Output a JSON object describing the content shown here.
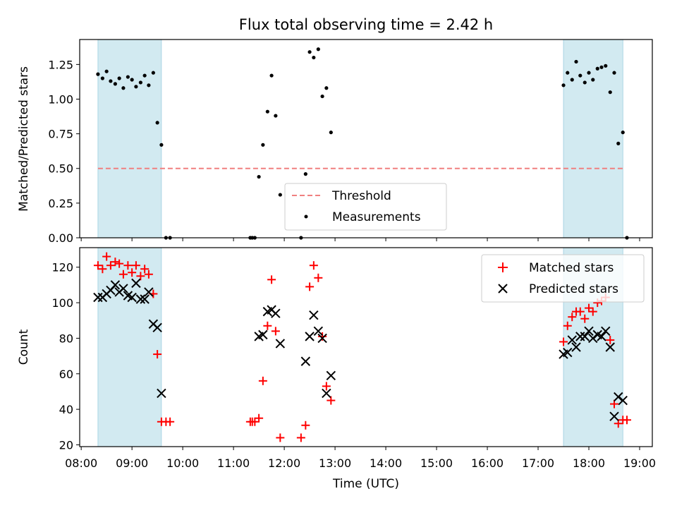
{
  "chart_data": [
    {
      "type": "scatter",
      "title": "Flux total observing time = 2.42 h",
      "xlabel": "",
      "ylabel": "Matched/Predicted stars",
      "xlim_hours": [
        7.97,
        19.25
      ],
      "ylim": [
        0,
        1.43
      ],
      "y_ticks": [
        "0.00",
        "0.25",
        "0.50",
        "0.75",
        "1.00",
        "1.25"
      ],
      "x_ticks": [
        "08:00",
        "09:00",
        "10:00",
        "11:00",
        "12:00",
        "13:00",
        "14:00",
        "15:00",
        "16:00",
        "17:00",
        "18:00",
        "19:00"
      ],
      "shaded_spans_hours": [
        [
          8.33,
          9.58
        ],
        [
          17.5,
          18.67
        ]
      ],
      "shade_color": "#add8e6",
      "threshold": 0.5,
      "threshold_span_hours": [
        8.33,
        18.67
      ],
      "threshold_color": "#f08080",
      "legend": {
        "placement": "lower-center",
        "entries": [
          "Threshold",
          "Measurements"
        ]
      },
      "series": [
        {
          "name": "Measurements",
          "color": "#000000",
          "points": [
            [
              8.33,
              1.18
            ],
            [
              8.42,
              1.15
            ],
            [
              8.5,
              1.2
            ],
            [
              8.58,
              1.13
            ],
            [
              8.67,
              1.11
            ],
            [
              8.75,
              1.15
            ],
            [
              8.83,
              1.08
            ],
            [
              8.92,
              1.16
            ],
            [
              9.0,
              1.14
            ],
            [
              9.08,
              1.09
            ],
            [
              9.17,
              1.12
            ],
            [
              9.25,
              1.17
            ],
            [
              9.33,
              1.1
            ],
            [
              9.42,
              1.19
            ],
            [
              9.5,
              0.83
            ],
            [
              9.58,
              0.67
            ],
            [
              9.67,
              0.0
            ],
            [
              9.75,
              0.0
            ],
            [
              11.33,
              0.0
            ],
            [
              11.37,
              0.0
            ],
            [
              11.42,
              0.0
            ],
            [
              11.5,
              0.44
            ],
            [
              11.58,
              0.67
            ],
            [
              11.67,
              0.91
            ],
            [
              11.75,
              1.17
            ],
            [
              11.83,
              0.88
            ],
            [
              11.92,
              0.31
            ],
            [
              12.33,
              0.0
            ],
            [
              12.42,
              0.46
            ],
            [
              12.5,
              1.34
            ],
            [
              12.58,
              1.3
            ],
            [
              12.67,
              1.36
            ],
            [
              12.75,
              1.02
            ],
            [
              12.83,
              1.08
            ],
            [
              12.92,
              0.76
            ],
            [
              17.5,
              1.1
            ],
            [
              17.58,
              1.19
            ],
            [
              17.67,
              1.14
            ],
            [
              17.75,
              1.27
            ],
            [
              17.83,
              1.17
            ],
            [
              17.92,
              1.12
            ],
            [
              18.0,
              1.19
            ],
            [
              18.08,
              1.14
            ],
            [
              18.17,
              1.22
            ],
            [
              18.25,
              1.23
            ],
            [
              18.33,
              1.24
            ],
            [
              18.42,
              1.05
            ],
            [
              18.5,
              1.19
            ],
            [
              18.58,
              0.68
            ],
            [
              18.67,
              0.76
            ],
            [
              18.75,
              0.0
            ]
          ]
        }
      ]
    },
    {
      "type": "scatter",
      "title": "",
      "xlabel": "Time (UTC)",
      "ylabel": "Count",
      "xlim_hours": [
        7.97,
        19.25
      ],
      "ylim": [
        19,
        131
      ],
      "y_ticks": [
        "20",
        "40",
        "60",
        "80",
        "100",
        "120"
      ],
      "x_ticks": [
        "08:00",
        "09:00",
        "10:00",
        "11:00",
        "12:00",
        "13:00",
        "14:00",
        "15:00",
        "16:00",
        "17:00",
        "18:00",
        "19:00"
      ],
      "shaded_spans_hours": [
        [
          8.33,
          9.58
        ],
        [
          17.5,
          18.67
        ]
      ],
      "shade_color": "#add8e6",
      "legend": {
        "placement": "upper-right",
        "entries": [
          "Matched stars",
          "Predicted stars"
        ]
      },
      "series": [
        {
          "name": "Matched stars",
          "marker": "plus",
          "color": "#ff0000",
          "points": [
            [
              8.33,
              121
            ],
            [
              8.42,
              119
            ],
            [
              8.5,
              126
            ],
            [
              8.58,
              121
            ],
            [
              8.67,
              123
            ],
            [
              8.75,
              122
            ],
            [
              8.83,
              116
            ],
            [
              8.92,
              121
            ],
            [
              9.0,
              117
            ],
            [
              9.08,
              121
            ],
            [
              9.17,
              115
            ],
            [
              9.25,
              119
            ],
            [
              9.33,
              116
            ],
            [
              9.42,
              105
            ],
            [
              9.5,
              71
            ],
            [
              9.58,
              33
            ],
            [
              9.67,
              33
            ],
            [
              9.75,
              33
            ],
            [
              11.33,
              33
            ],
            [
              11.37,
              33
            ],
            [
              11.42,
              33
            ],
            [
              11.5,
              35
            ],
            [
              11.58,
              56
            ],
            [
              11.67,
              87
            ],
            [
              11.75,
              113
            ],
            [
              11.83,
              84
            ],
            [
              11.92,
              24
            ],
            [
              12.33,
              24
            ],
            [
              12.42,
              31
            ],
            [
              12.5,
              109
            ],
            [
              12.58,
              121
            ],
            [
              12.67,
              114
            ],
            [
              12.75,
              81
            ],
            [
              12.83,
              53
            ],
            [
              12.92,
              45
            ],
            [
              17.5,
              78
            ],
            [
              17.58,
              87
            ],
            [
              17.67,
              92
            ],
            [
              17.75,
              95
            ],
            [
              17.83,
              95
            ],
            [
              17.92,
              91
            ],
            [
              18.0,
              97
            ],
            [
              18.08,
              95
            ],
            [
              18.17,
              100
            ],
            [
              18.25,
              101
            ],
            [
              18.33,
              103
            ],
            [
              18.42,
              79
            ],
            [
              18.5,
              43
            ],
            [
              18.58,
              32
            ],
            [
              18.67,
              34
            ],
            [
              18.75,
              34
            ]
          ]
        },
        {
          "name": "Predicted stars",
          "marker": "x",
          "color": "#000000",
          "points": [
            [
              8.33,
              103
            ],
            [
              8.42,
              103
            ],
            [
              8.5,
              105
            ],
            [
              8.58,
              107
            ],
            [
              8.67,
              110
            ],
            [
              8.75,
              106
            ],
            [
              8.83,
              108
            ],
            [
              8.92,
              104
            ],
            [
              9.0,
              103
            ],
            [
              9.08,
              111
            ],
            [
              9.17,
              102
            ],
            [
              9.25,
              102
            ],
            [
              9.33,
              106
            ],
            [
              9.42,
              88
            ],
            [
              9.5,
              86
            ],
            [
              9.58,
              49
            ],
            [
              11.5,
              81
            ],
            [
              11.58,
              82
            ],
            [
              11.67,
              95
            ],
            [
              11.75,
              96
            ],
            [
              11.83,
              94
            ],
            [
              11.92,
              77
            ],
            [
              12.42,
              67
            ],
            [
              12.5,
              81
            ],
            [
              12.58,
              93
            ],
            [
              12.67,
              84
            ],
            [
              12.75,
              80
            ],
            [
              12.83,
              49
            ],
            [
              12.92,
              59
            ],
            [
              17.5,
              71
            ],
            [
              17.58,
              72
            ],
            [
              17.67,
              79
            ],
            [
              17.75,
              75
            ],
            [
              17.83,
              81
            ],
            [
              17.92,
              81
            ],
            [
              18.0,
              84
            ],
            [
              18.08,
              80
            ],
            [
              18.17,
              82
            ],
            [
              18.25,
              81
            ],
            [
              18.33,
              84
            ],
            [
              18.42,
              75
            ],
            [
              18.5,
              36
            ],
            [
              18.58,
              47
            ],
            [
              18.67,
              45
            ]
          ]
        }
      ]
    }
  ]
}
